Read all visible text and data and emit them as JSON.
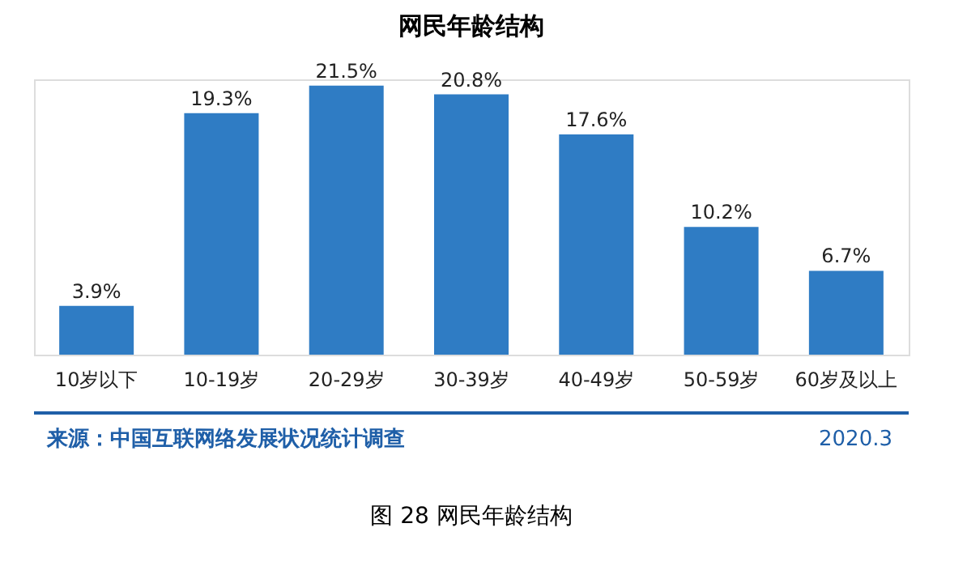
{
  "chart_data": {
    "type": "bar",
    "title": "网民年龄结构",
    "categories": [
      "10岁以下",
      "10-19岁",
      "20-29岁",
      "30-39岁",
      "40-49岁",
      "50-59岁",
      "60岁及以上"
    ],
    "values": [
      3.9,
      19.3,
      21.5,
      20.8,
      17.6,
      10.2,
      6.7
    ],
    "value_labels": [
      "3.9%",
      "19.3%",
      "21.5%",
      "20.8%",
      "17.6%",
      "10.2%",
      "6.7%"
    ],
    "color": "#2f7cc4",
    "annotations": [
      "来源：中国互联网络发展状况统计调查",
      "2020.3",
      "图 28    网民年龄结构"
    ]
  }
}
